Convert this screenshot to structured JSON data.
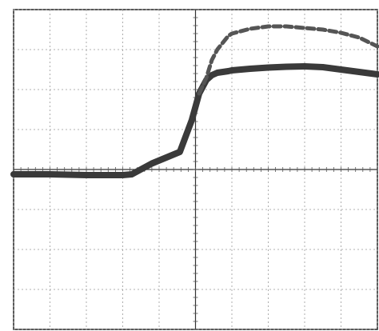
{
  "chart_data": {
    "type": "line",
    "x": [
      0,
      1,
      2,
      3,
      3.25,
      3.8,
      4.57,
      4.9,
      5.1,
      5.3,
      5.45,
      5.6,
      5.9,
      6.0,
      6.5,
      7,
      7.5,
      8,
      8.5,
      9,
      9.5,
      10
    ],
    "series": [
      {
        "color": "#3a3a3a",
        "style": "solid",
        "values": [
          -0.12,
          -0.12,
          -0.14,
          -0.14,
          -0.12,
          0.15,
          0.44,
          1.24,
          1.9,
          2.24,
          2.36,
          2.42,
          2.46,
          2.48,
          2.52,
          2.55,
          2.57,
          2.58,
          2.56,
          2.5,
          2.44,
          2.38
        ]
      },
      {
        "color": "#555555",
        "style": "dashed",
        "values": [
          null,
          null,
          null,
          null,
          null,
          null,
          null,
          null,
          1.9,
          2.3,
          2.74,
          3.0,
          3.34,
          3.4,
          3.52,
          3.58,
          3.58,
          3.54,
          3.5,
          3.42,
          3.3,
          3.08
        ]
      }
    ],
    "xlim": [
      0,
      10
    ],
    "ylim": [
      -4,
      4
    ],
    "xticks": [
      0,
      1,
      2,
      3,
      4,
      5,
      6,
      7,
      8,
      9,
      10
    ],
    "yticks": [
      -4,
      -3,
      -2,
      -1,
      0,
      1,
      2,
      3,
      4
    ],
    "grid": true
  }
}
